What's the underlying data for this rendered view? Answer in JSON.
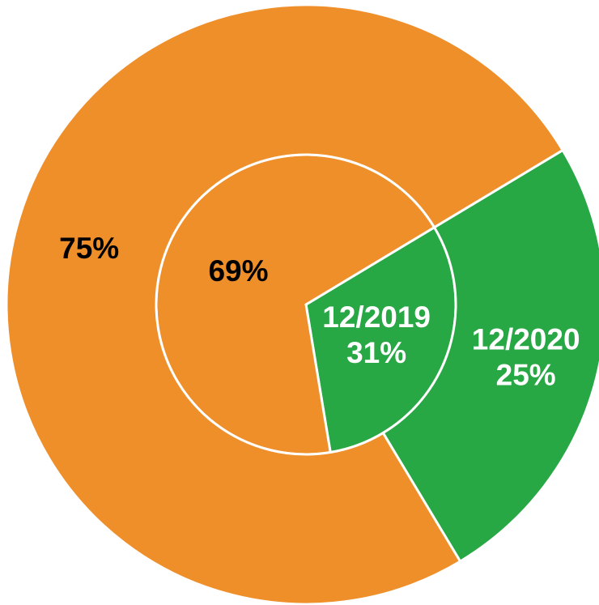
{
  "chart_data": {
    "type": "pie",
    "categories": [
      null,
      null
    ],
    "colors": [
      "#28a745",
      "#ef8f2a"
    ],
    "series": [
      {
        "name": "12/2019",
        "values": [
          31,
          69
        ],
        "value_labels": [
          "31%",
          "69%"
        ]
      },
      {
        "name": "12/2020",
        "values": [
          25,
          75
        ],
        "value_labels": [
          "25%",
          "75%"
        ]
      }
    ]
  }
}
